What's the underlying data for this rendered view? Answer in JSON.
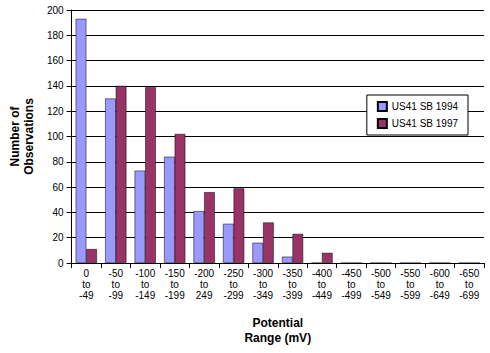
{
  "chart_data": {
    "type": "bar",
    "x_label": "Potential\nRange (mV)",
    "y_label": "Number of\nObservations",
    "categories": [
      "0\nto\n-49",
      "-50\nto\n-99",
      "-100\nto\n-149",
      "-150\nto\n-199",
      "-200\nto\n249",
      "-250\nto\n-299",
      "-300\nto\n-349",
      "-350\nto\n-399",
      "-400\nto\n-449",
      "-450\nto\n-499",
      "-500\nto\n-549",
      "-550\nto\n-599",
      "-600\nto\n-649",
      "-650\nto\n-699"
    ],
    "series": [
      {
        "name": "US41 SB 1994",
        "color": "#9999ff",
        "values": [
          193,
          130,
          73,
          84,
          41,
          31,
          16,
          5,
          0,
          0,
          0,
          0,
          0,
          0
        ]
      },
      {
        "name": "US41 SB 1997",
        "color": "#993366",
        "values": [
          11,
          140,
          139,
          102,
          56,
          59,
          32,
          23,
          8,
          0,
          0,
          0,
          0,
          0
        ]
      }
    ],
    "ylim": [
      0,
      200
    ],
    "yticks": [
      0,
      20,
      40,
      60,
      80,
      100,
      120,
      140,
      160,
      180,
      200
    ],
    "grid": true,
    "legend": "right"
  }
}
